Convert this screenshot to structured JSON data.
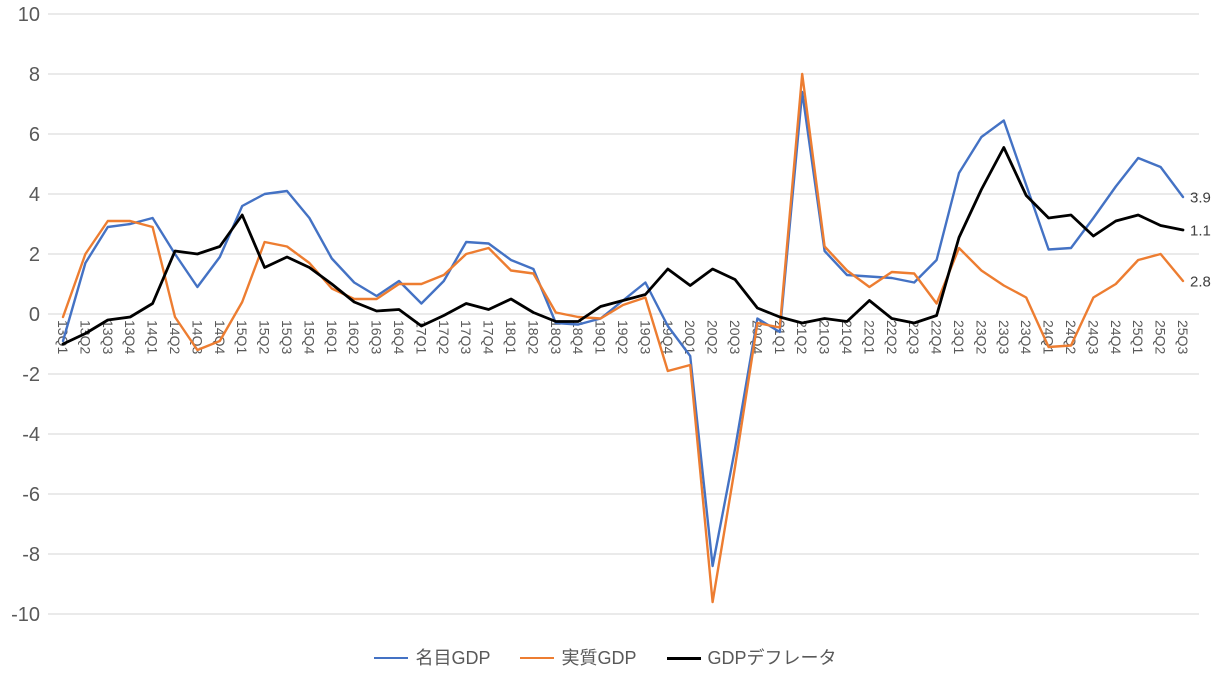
{
  "chart_data": {
    "type": "line",
    "title": "",
    "categories": [
      "13Q1",
      "13Q2",
      "13Q3",
      "13Q4",
      "14Q1",
      "14Q2",
      "14Q3",
      "14Q4",
      "15Q1",
      "15Q2",
      "15Q3",
      "15Q4",
      "16Q1",
      "16Q2",
      "16Q3",
      "16Q4",
      "17Q1",
      "17Q2",
      "17Q3",
      "17Q4",
      "18Q1",
      "18Q2",
      "18Q3",
      "18Q4",
      "19Q1",
      "19Q2",
      "19Q3",
      "19Q4",
      "20Q1",
      "20Q2",
      "20Q3",
      "20Q4",
      "21Q1",
      "21Q2",
      "21Q3",
      "21Q4",
      "22Q1",
      "22Q2",
      "22Q3",
      "22Q4",
      "23Q1",
      "23Q2",
      "23Q3",
      "23Q4",
      "24Q1",
      "24Q2",
      "24Q3",
      "24Q4",
      "25Q1",
      "25Q2",
      "25Q3"
    ],
    "series": [
      {
        "name": "名目GDP",
        "color": "#4472C4",
        "values": [
          -0.9,
          1.7,
          2.9,
          3.0,
          3.2,
          2.0,
          0.9,
          1.9,
          3.6,
          4.0,
          4.1,
          3.2,
          1.85,
          1.05,
          0.6,
          1.1,
          0.35,
          1.1,
          2.4,
          2.35,
          1.8,
          1.5,
          -0.3,
          -0.35,
          -0.15,
          0.45,
          1.05,
          -0.4,
          -1.4,
          -8.4,
          -4.5,
          -0.15,
          -0.6,
          7.4,
          2.1,
          1.3,
          1.25,
          1.2,
          1.05,
          1.8,
          4.7,
          5.9,
          6.45,
          4.3,
          2.15,
          2.2,
          3.2,
          4.25,
          5.2,
          4.9,
          3.9
        ]
      },
      {
        "name": "実質GDP",
        "color": "#ED7D31",
        "values": [
          -0.1,
          2.0,
          3.1,
          3.1,
          2.9,
          -0.1,
          -1.2,
          -0.9,
          0.4,
          2.4,
          2.25,
          1.7,
          0.85,
          0.5,
          0.5,
          1.0,
          1.0,
          1.3,
          2.0,
          2.2,
          1.45,
          1.35,
          0.05,
          -0.1,
          -0.15,
          0.3,
          0.55,
          -1.9,
          -1.7,
          -9.6,
          -5.1,
          -0.3,
          -0.45,
          8.0,
          2.25,
          1.45,
          0.9,
          1.4,
          1.35,
          0.35,
          2.2,
          1.45,
          0.95,
          0.55,
          -1.1,
          -1.05,
          0.55,
          1.0,
          1.8,
          2.0,
          1.1
        ]
      },
      {
        "name": "GDPデフレータ",
        "color": "#000000",
        "values": [
          -1.0,
          -0.65,
          -0.2,
          -0.1,
          0.35,
          2.1,
          2.0,
          2.25,
          3.3,
          1.55,
          1.9,
          1.55,
          1.0,
          0.4,
          0.1,
          0.15,
          -0.4,
          -0.05,
          0.35,
          0.15,
          0.5,
          0.05,
          -0.25,
          -0.25,
          0.25,
          0.45,
          0.65,
          1.5,
          0.95,
          1.5,
          1.15,
          0.2,
          -0.1,
          -0.3,
          -0.15,
          -0.25,
          0.45,
          -0.15,
          -0.3,
          -0.05,
          2.55,
          4.15,
          5.55,
          3.95,
          3.2,
          3.3,
          2.6,
          3.1,
          3.3,
          2.95,
          2.8
        ]
      }
    ],
    "end_labels": [
      "3.9",
      "2.8",
      "1.1"
    ],
    "y_axis": {
      "min": -10,
      "max": 10,
      "step": 2,
      "tick_labels": [
        "10",
        "8",
        "6",
        "4",
        "2",
        "0",
        "-2",
        "-4",
        "-6",
        "-8",
        "-10"
      ]
    },
    "grid": true,
    "legend_position": "bottom",
    "colors": {
      "grid": "#D6D6D6",
      "axis_text": "#595959",
      "end_label_text": "#404040",
      "background": "#FFFFFF"
    }
  }
}
